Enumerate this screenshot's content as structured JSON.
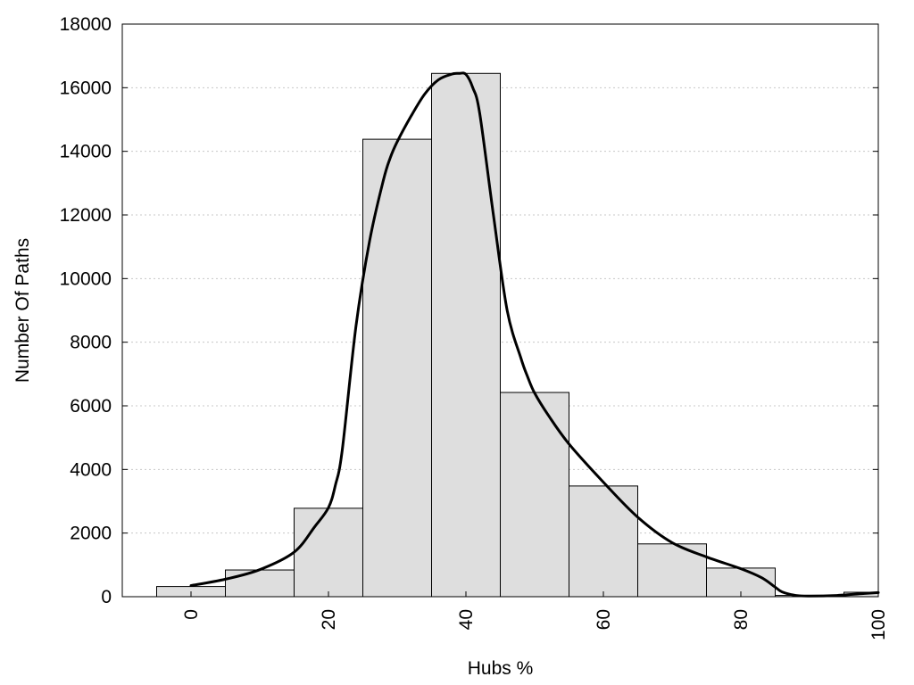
{
  "chart_data": {
    "type": "bar",
    "title": "",
    "xlabel": "Hubs %",
    "ylabel": "Number Of Paths",
    "xlim": [
      -10,
      100
    ],
    "ylim": [
      0,
      18000
    ],
    "xticks": [
      0,
      20,
      40,
      60,
      80,
      100
    ],
    "yticks": [
      0,
      2000,
      4000,
      6000,
      8000,
      10000,
      12000,
      14000,
      16000,
      18000
    ],
    "grid": "horizontal dotted",
    "bin_width": 10,
    "bins": [
      {
        "center": 0,
        "value": 320
      },
      {
        "center": 10,
        "value": 840
      },
      {
        "center": 20,
        "value": 2780
      },
      {
        "center": 30,
        "value": 14380
      },
      {
        "center": 40,
        "value": 16450
      },
      {
        "center": 50,
        "value": 6420
      },
      {
        "center": 60,
        "value": 3480
      },
      {
        "center": 70,
        "value": 1660
      },
      {
        "center": 80,
        "value": 900
      },
      {
        "center": 90,
        "value": 40
      },
      {
        "center": 100,
        "value": 140
      }
    ],
    "trend_line": {
      "x": [
        0,
        5,
        10,
        15,
        18,
        20,
        21,
        22,
        24,
        26,
        28,
        29,
        30,
        32,
        34,
        36,
        38,
        39,
        40,
        41,
        42,
        44,
        46,
        48,
        49,
        50,
        52,
        55,
        60,
        65,
        70,
        75,
        80,
        83,
        85,
        86,
        88,
        90,
        94,
        98,
        100
      ],
      "y": [
        350,
        550,
        850,
        1400,
        2200,
        2800,
        3500,
        4600,
        8500,
        11200,
        13100,
        13800,
        14300,
        15100,
        15800,
        16250,
        16430,
        16450,
        16420,
        16000,
        15200,
        12000,
        9000,
        7500,
        6900,
        6400,
        5700,
        4800,
        3600,
        2500,
        1700,
        1250,
        880,
        600,
        300,
        150,
        40,
        20,
        40,
        100,
        130
      ]
    },
    "colors": {
      "bar_fill": "#dedede",
      "bar_stroke": "#000000",
      "line": "#000000",
      "grid": "#c8c8c8"
    }
  }
}
